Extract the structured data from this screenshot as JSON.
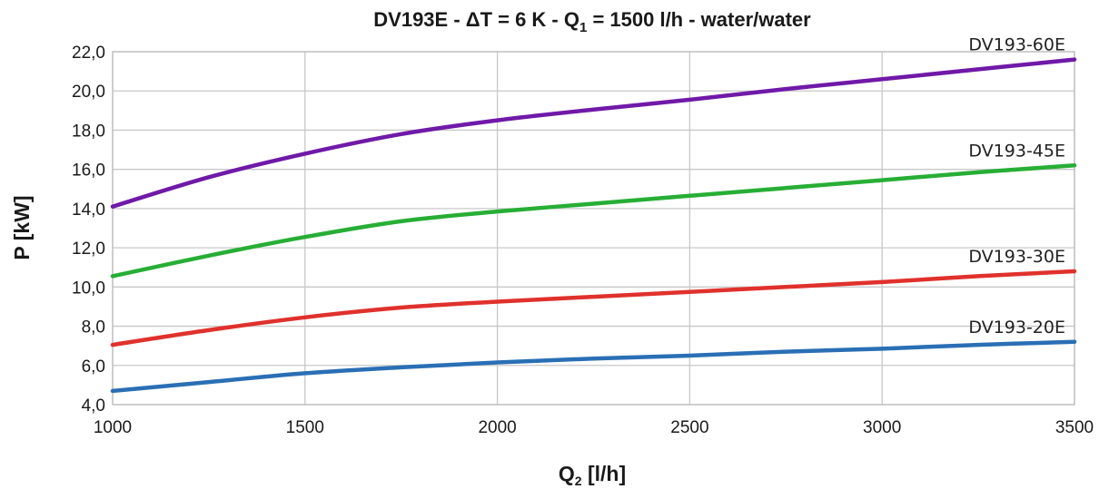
{
  "chart_data": {
    "type": "line",
    "title": {
      "prefix": "DV193E - ΔT = 6 K - Q",
      "subscript": "1",
      "suffix": " = 1500 l/h - water/water"
    },
    "xlabel": {
      "main": "Q",
      "subscript": "2",
      "suffix": " [l/h]"
    },
    "ylabel": "P [kW]",
    "xlim": [
      1000,
      3500
    ],
    "ylim": [
      4,
      22
    ],
    "x_ticks": [
      1000,
      1500,
      2000,
      2500,
      3000,
      3500
    ],
    "x_tick_labels": [
      "1000",
      "1500",
      "2000",
      "2500",
      "3000",
      "3500"
    ],
    "y_ticks": [
      4,
      6,
      8,
      10,
      12,
      14,
      16,
      18,
      20,
      22
    ],
    "y_tick_labels": [
      "4,0",
      "6,0",
      "8,0",
      "10,0",
      "12,0",
      "14,0",
      "16,0",
      "18,0",
      "20,0",
      "22,0"
    ],
    "grid": true,
    "legend": "inline labels at right end of each line",
    "series": [
      {
        "name": "DV193-60E",
        "color": "#7019a8",
        "x": [
          1000,
          1250,
          1500,
          1750,
          2000,
          2250,
          2500,
          2750,
          3000,
          3250,
          3500
        ],
        "y": [
          14.1,
          15.6,
          16.8,
          17.8,
          18.5,
          19.05,
          19.55,
          20.1,
          20.6,
          21.1,
          21.6
        ]
      },
      {
        "name": "DV193-45E",
        "color": "#27ae35",
        "x": [
          1000,
          1250,
          1500,
          1750,
          2000,
          2250,
          2500,
          2750,
          3000,
          3250,
          3500
        ],
        "y": [
          10.55,
          11.6,
          12.55,
          13.35,
          13.85,
          14.25,
          14.65,
          15.05,
          15.45,
          15.85,
          16.2
        ]
      },
      {
        "name": "DV193-30E",
        "color": "#e0312c",
        "x": [
          1000,
          1250,
          1500,
          1750,
          2000,
          2250,
          2500,
          2750,
          3000,
          3250,
          3500
        ],
        "y": [
          7.05,
          7.8,
          8.45,
          8.95,
          9.25,
          9.5,
          9.75,
          10.0,
          10.25,
          10.55,
          10.8
        ]
      },
      {
        "name": "DV193-20E",
        "color": "#2a6fb5",
        "x": [
          1000,
          1250,
          1500,
          1750,
          2000,
          2250,
          2500,
          2750,
          3000,
          3250,
          3500
        ],
        "y": [
          4.7,
          5.15,
          5.6,
          5.9,
          6.15,
          6.35,
          6.5,
          6.7,
          6.85,
          7.05,
          7.2
        ]
      }
    ]
  }
}
